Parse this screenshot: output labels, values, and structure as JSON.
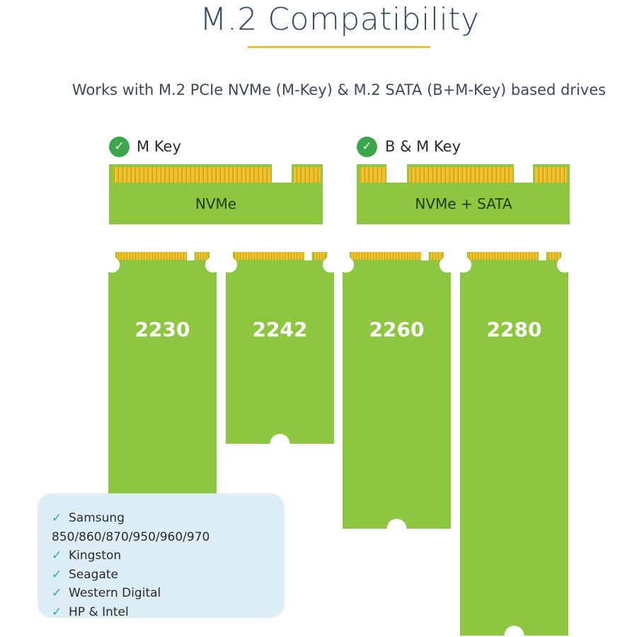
{
  "title": "M.2 Compatibility",
  "subtitle": "Works with M.2 PCIe NVMe (M-Key) & M.2 SATA (B+M-Key) based drives",
  "colors": {
    "board": "#8dc63f",
    "pins": "#f2c12e",
    "accent": "#f2c12e",
    "check": "#3aa84a",
    "list_tick": "#2aa3b8",
    "list_bg": "#dcedf5"
  },
  "keys": [
    {
      "label": "M Key",
      "connector_label": "NVMe",
      "icon": "check-circle-icon"
    },
    {
      "label": "B & M Key",
      "connector_label": "NVMe + SATA",
      "icon": "check-circle-icon"
    }
  ],
  "form_factors": [
    "2230",
    "2242",
    "2260",
    "2280"
  ],
  "brands": {
    "icon": "checkmark-icon",
    "items": [
      "Samsung 850/860/870/950/960/970",
      "Kingston",
      "Seagate",
      "Western Digital",
      "HP & Intel"
    ]
  }
}
